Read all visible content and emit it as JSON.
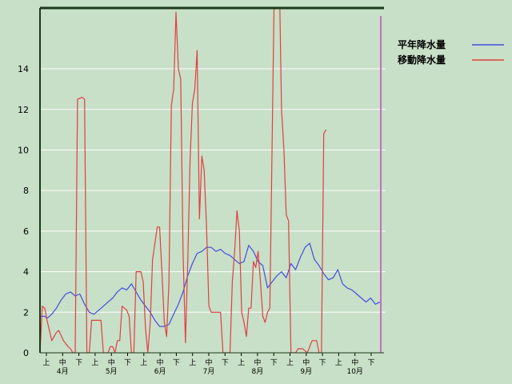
{
  "chart_data": {
    "type": "line",
    "ylim": [
      0,
      17
    ],
    "y_ticks": [
      0,
      2,
      4,
      6,
      8,
      10,
      12,
      14
    ],
    "grid": "horizontal",
    "legend_position": "top-right",
    "x_period_labels": [
      "上",
      "中",
      "下",
      "上",
      "中",
      "下",
      "上",
      "中",
      "下",
      "上",
      "中",
      "下",
      "上",
      "中",
      "下",
      "上",
      "中",
      "下",
      "上",
      "中",
      "下"
    ],
    "month_labels": [
      "4月",
      "5月",
      "6月",
      "7月",
      "8月",
      "9月",
      "10月"
    ],
    "marker_color": "#c070c0",
    "series": [
      {
        "name": "平年降水量",
        "color": "#4050e0",
        "values": [
          [
            0,
            1.8
          ],
          [
            2,
            1.8
          ],
          [
            3,
            1.7
          ],
          [
            5,
            1.9
          ],
          [
            7,
            2.2
          ],
          [
            9,
            2.6
          ],
          [
            11,
            2.9
          ],
          [
            13,
            3.0
          ],
          [
            15,
            2.8
          ],
          [
            17,
            2.9
          ],
          [
            19,
            2.4
          ],
          [
            21,
            2.0
          ],
          [
            23,
            1.9
          ],
          [
            25,
            2.1
          ],
          [
            27,
            2.3
          ],
          [
            29,
            2.5
          ],
          [
            31,
            2.7
          ],
          [
            33,
            3.0
          ],
          [
            35,
            3.2
          ],
          [
            37,
            3.1
          ],
          [
            39,
            3.4
          ],
          [
            41,
            3.0
          ],
          [
            43,
            2.6
          ],
          [
            45,
            2.3
          ],
          [
            47,
            2.0
          ],
          [
            49,
            1.6
          ],
          [
            51,
            1.3
          ],
          [
            53,
            1.3
          ],
          [
            55,
            1.4
          ],
          [
            57,
            1.9
          ],
          [
            59,
            2.4
          ],
          [
            61,
            3.0
          ],
          [
            63,
            3.8
          ],
          [
            65,
            4.4
          ],
          [
            67,
            4.9
          ],
          [
            69,
            5.0
          ],
          [
            71,
            5.2
          ],
          [
            73,
            5.2
          ],
          [
            75,
            5.0
          ],
          [
            77,
            5.1
          ],
          [
            79,
            4.9
          ],
          [
            81,
            4.8
          ],
          [
            83,
            4.6
          ],
          [
            85,
            4.4
          ],
          [
            87,
            4.5
          ],
          [
            89,
            5.3
          ],
          [
            91,
            5.0
          ],
          [
            93,
            4.5
          ],
          [
            95,
            4.3
          ],
          [
            97,
            3.2
          ],
          [
            99,
            3.5
          ],
          [
            101,
            3.8
          ],
          [
            103,
            4.0
          ],
          [
            105,
            3.7
          ],
          [
            107,
            4.4
          ],
          [
            109,
            4.1
          ],
          [
            111,
            4.7
          ],
          [
            113,
            5.2
          ],
          [
            115,
            5.4
          ],
          [
            117,
            4.6
          ],
          [
            119,
            4.3
          ],
          [
            121,
            3.9
          ],
          [
            123,
            3.6
          ],
          [
            125,
            3.7
          ],
          [
            127,
            4.1
          ],
          [
            129,
            3.4
          ],
          [
            131,
            3.2
          ],
          [
            133,
            3.1
          ],
          [
            135,
            2.9
          ],
          [
            137,
            2.7
          ],
          [
            139,
            2.5
          ],
          [
            141,
            2.7
          ],
          [
            143,
            2.4
          ],
          [
            145,
            2.5
          ]
        ]
      },
      {
        "name": "移動降水量",
        "color": "#e04040",
        "values": [
          [
            0,
            0.0
          ],
          [
            1,
            2.3
          ],
          [
            2,
            2.2
          ],
          [
            3,
            1.6
          ],
          [
            5,
            0.6
          ],
          [
            7,
            1.0
          ],
          [
            8,
            1.1
          ],
          [
            10,
            0.6
          ],
          [
            12,
            0.3
          ],
          [
            13,
            0.2
          ],
          [
            14,
            0.0
          ],
          [
            15,
            0.0
          ],
          [
            16,
            12.5
          ],
          [
            18,
            12.6
          ],
          [
            19,
            12.5
          ],
          [
            20,
            0.0
          ],
          [
            21,
            0.0
          ],
          [
            22,
            1.6
          ],
          [
            24,
            1.6
          ],
          [
            26,
            1.6
          ],
          [
            27,
            0.0
          ],
          [
            29,
            0.0
          ],
          [
            30,
            0.3
          ],
          [
            31,
            0.3
          ],
          [
            32,
            0.0
          ],
          [
            33,
            0.6
          ],
          [
            34,
            0.6
          ],
          [
            35,
            2.3
          ],
          [
            37,
            2.1
          ],
          [
            38,
            1.8
          ],
          [
            39,
            0.0
          ],
          [
            40,
            0.0
          ],
          [
            41,
            4.0
          ],
          [
            43,
            4.0
          ],
          [
            44,
            3.5
          ],
          [
            45,
            1.2
          ],
          [
            46,
            0.0
          ],
          [
            47,
            1.5
          ],
          [
            48,
            4.6
          ],
          [
            50,
            6.2
          ],
          [
            51,
            6.2
          ],
          [
            52,
            4.0
          ],
          [
            53,
            1.5
          ],
          [
            54,
            0.8
          ],
          [
            55,
            3.5
          ],
          [
            56,
            12.2
          ],
          [
            57,
            13.0
          ],
          [
            58,
            16.8
          ],
          [
            59,
            14.0
          ],
          [
            60,
            13.5
          ],
          [
            61,
            5.0
          ],
          [
            62,
            0.5
          ],
          [
            63,
            4.5
          ],
          [
            64,
            9.5
          ],
          [
            65,
            12.3
          ],
          [
            66,
            13.0
          ],
          [
            67,
            14.9
          ],
          [
            68,
            6.6
          ],
          [
            69,
            9.7
          ],
          [
            70,
            9.0
          ],
          [
            71,
            6.3
          ],
          [
            72,
            2.3
          ],
          [
            73,
            2.0
          ],
          [
            75,
            2.0
          ],
          [
            77,
            2.0
          ],
          [
            78,
            0.0
          ],
          [
            81,
            0.0
          ],
          [
            82,
            3.5
          ],
          [
            83,
            5.0
          ],
          [
            84,
            7.0
          ],
          [
            85,
            6.0
          ],
          [
            86,
            2.0
          ],
          [
            87,
            1.5
          ],
          [
            88,
            0.8
          ],
          [
            89,
            2.2
          ],
          [
            90,
            2.2
          ],
          [
            91,
            4.5
          ],
          [
            92,
            4.2
          ],
          [
            93,
            5.0
          ],
          [
            94,
            3.5
          ],
          [
            95,
            1.8
          ],
          [
            96,
            1.5
          ],
          [
            97,
            2.0
          ],
          [
            98,
            2.2
          ],
          [
            100,
            19.0
          ],
          [
            102,
            19.0
          ],
          [
            103,
            12.0
          ],
          [
            104,
            10.0
          ],
          [
            105,
            6.8
          ],
          [
            106,
            6.5
          ],
          [
            107,
            0.0
          ],
          [
            109,
            0.0
          ],
          [
            110,
            0.2
          ],
          [
            112,
            0.2
          ],
          [
            114,
            0.0
          ],
          [
            116,
            0.6
          ],
          [
            118,
            0.6
          ],
          [
            119,
            0.0
          ],
          [
            120,
            0.0
          ],
          [
            121,
            10.8
          ],
          [
            122,
            11.0
          ]
        ]
      }
    ]
  }
}
